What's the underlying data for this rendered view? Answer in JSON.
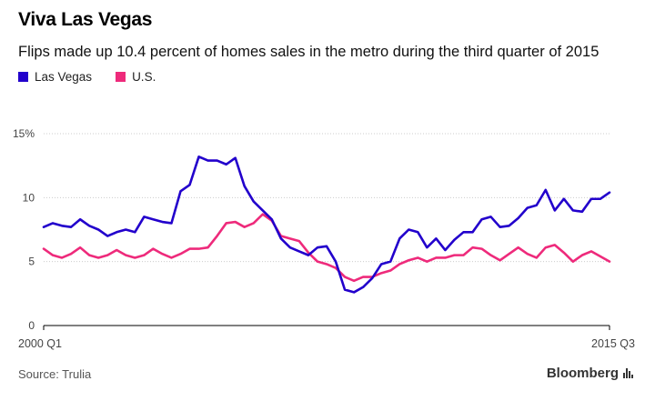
{
  "header": {
    "title": "Viva Las Vegas",
    "subtitle": "Flips made up 10.4 percent of homes sales in the metro during the third quarter of 2015"
  },
  "legend": [
    {
      "label": "Las Vegas",
      "color": "#2200cc"
    },
    {
      "label": "U.S.",
      "color": "#ee2a7b"
    }
  ],
  "footer": {
    "source": "Source: Trulia",
    "brand": "Bloomberg",
    "brand_icon": "bar-chart-icon"
  },
  "chart_data": {
    "type": "line",
    "title": "Viva Las Vegas",
    "subtitle": "Flips made up 10.4 percent of homes sales in the metro during the third quarter of 2015",
    "xlabel": "",
    "ylabel": "",
    "ylim": [
      0,
      15
    ],
    "yticks": [
      {
        "value": 0,
        "label": "0"
      },
      {
        "value": 5,
        "label": "5"
      },
      {
        "value": 10,
        "label": "10"
      },
      {
        "value": 15,
        "label": "15%"
      }
    ],
    "x_start_label": "2000 Q1",
    "x_end_label": "2015 Q3",
    "grid": true,
    "series": [
      {
        "name": "Las Vegas",
        "color": "#2200cc",
        "values": [
          7.7,
          8.0,
          7.8,
          7.7,
          8.3,
          7.8,
          7.5,
          7.0,
          7.3,
          7.5,
          7.3,
          8.5,
          8.3,
          8.1,
          8.0,
          10.5,
          11.0,
          13.2,
          12.9,
          12.9,
          12.6,
          13.1,
          10.9,
          9.7,
          9.0,
          8.3,
          6.8,
          6.1,
          5.8,
          5.5,
          6.1,
          6.2,
          5.0,
          2.8,
          2.6,
          3.0,
          3.7,
          4.8,
          5.0,
          6.8,
          7.5,
          7.3,
          6.1,
          6.8,
          5.9,
          6.7,
          7.3,
          7.3,
          8.3,
          8.5,
          7.7,
          7.8,
          8.4,
          9.2,
          9.4,
          10.6,
          9.0,
          9.9,
          9.0,
          8.9,
          9.9,
          9.9,
          10.4
        ]
      },
      {
        "name": "U.S.",
        "color": "#ee2a7b",
        "values": [
          6.0,
          5.5,
          5.3,
          5.6,
          6.1,
          5.5,
          5.3,
          5.5,
          5.9,
          5.5,
          5.3,
          5.5,
          6.0,
          5.6,
          5.3,
          5.6,
          6.0,
          6.0,
          6.1,
          7.0,
          8.0,
          8.1,
          7.7,
          8.0,
          8.7,
          8.2,
          7.0,
          6.8,
          6.6,
          5.7,
          5.0,
          4.8,
          4.5,
          3.8,
          3.5,
          3.8,
          3.8,
          4.1,
          4.3,
          4.8,
          5.1,
          5.3,
          5.0,
          5.3,
          5.3,
          5.5,
          5.5,
          6.1,
          6.0,
          5.5,
          5.1,
          5.6,
          6.1,
          5.6,
          5.3,
          6.1,
          6.3,
          5.7,
          5.0,
          5.5,
          5.8,
          5.4,
          5.0
        ]
      }
    ]
  }
}
